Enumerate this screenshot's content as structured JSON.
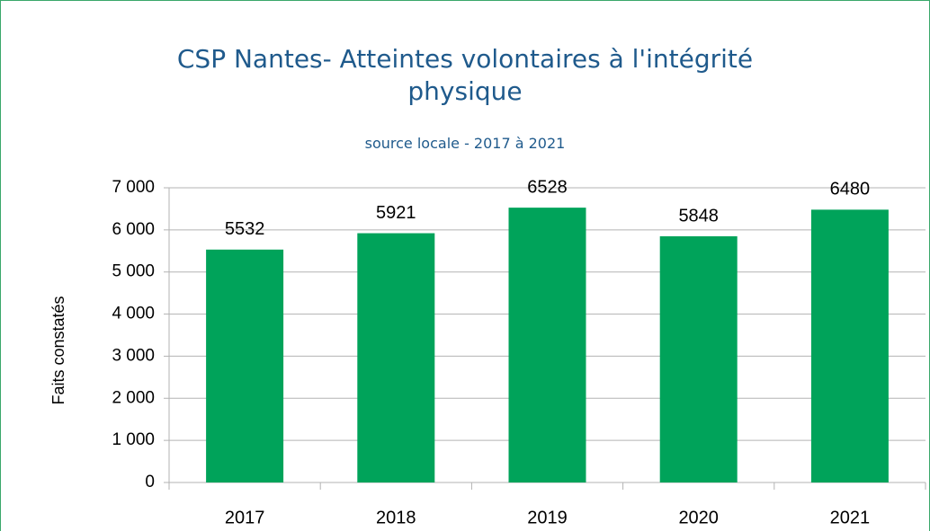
{
  "chart_data": {
    "type": "bar",
    "title": "CSP Nantes- Atteintes volontaires à l'intégrité physique",
    "subtitle": "source locale - 2017 à 2021",
    "y_label": "Faits constatés",
    "categories": [
      "2017",
      "2018",
      "2019",
      "2020",
      "2021"
    ],
    "values": [
      5532,
      5921,
      6528,
      5848,
      6480
    ],
    "color": "#00a35a",
    "ylim": [
      0,
      7000
    ],
    "yticks": [
      0,
      {
        "value": 1000,
        "label": "1 000"
      },
      {
        "value": 2000,
        "label": "2 000"
      },
      {
        "value": 3000,
        "label": "3 000"
      },
      {
        "value": 4000,
        "label": "4 000"
      },
      {
        "value": 5000,
        "label": "5 000"
      },
      {
        "value": 6000,
        "label": "6 000"
      },
      {
        "value": 7000,
        "label": "7 000"
      }
    ],
    "grid": true
  }
}
